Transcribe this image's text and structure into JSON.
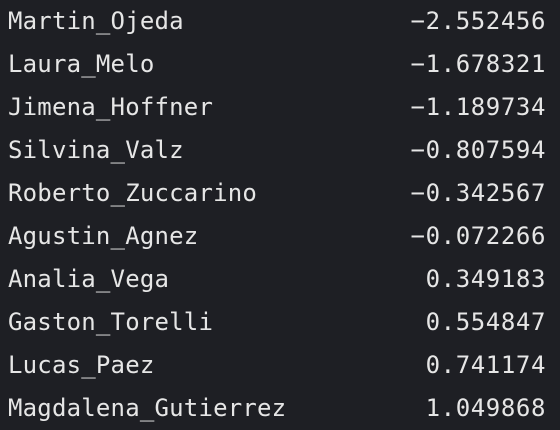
{
  "theme": {
    "background": "#1e1f24",
    "text_color": "#e6e6e6"
  },
  "rows": [
    {
      "name": "Martin_Ojeda",
      "value": "−2.552456"
    },
    {
      "name": "Laura_Melo",
      "value": "−1.678321"
    },
    {
      "name": "Jimena_Hoffner",
      "value": "−1.189734"
    },
    {
      "name": "Silvina_Valz",
      "value": "−0.807594"
    },
    {
      "name": "Roberto_Zuccarino",
      "value": "−0.342567"
    },
    {
      "name": "Agustin_Agnez",
      "value": "−0.072266"
    },
    {
      "name": "Analia_Vega",
      "value": "0.349183"
    },
    {
      "name": "Gaston_Torelli",
      "value": "0.554847"
    },
    {
      "name": "Lucas_Paez",
      "value": "0.741174"
    },
    {
      "name": "Magdalena_Gutierrez",
      "value": "1.049868"
    }
  ]
}
